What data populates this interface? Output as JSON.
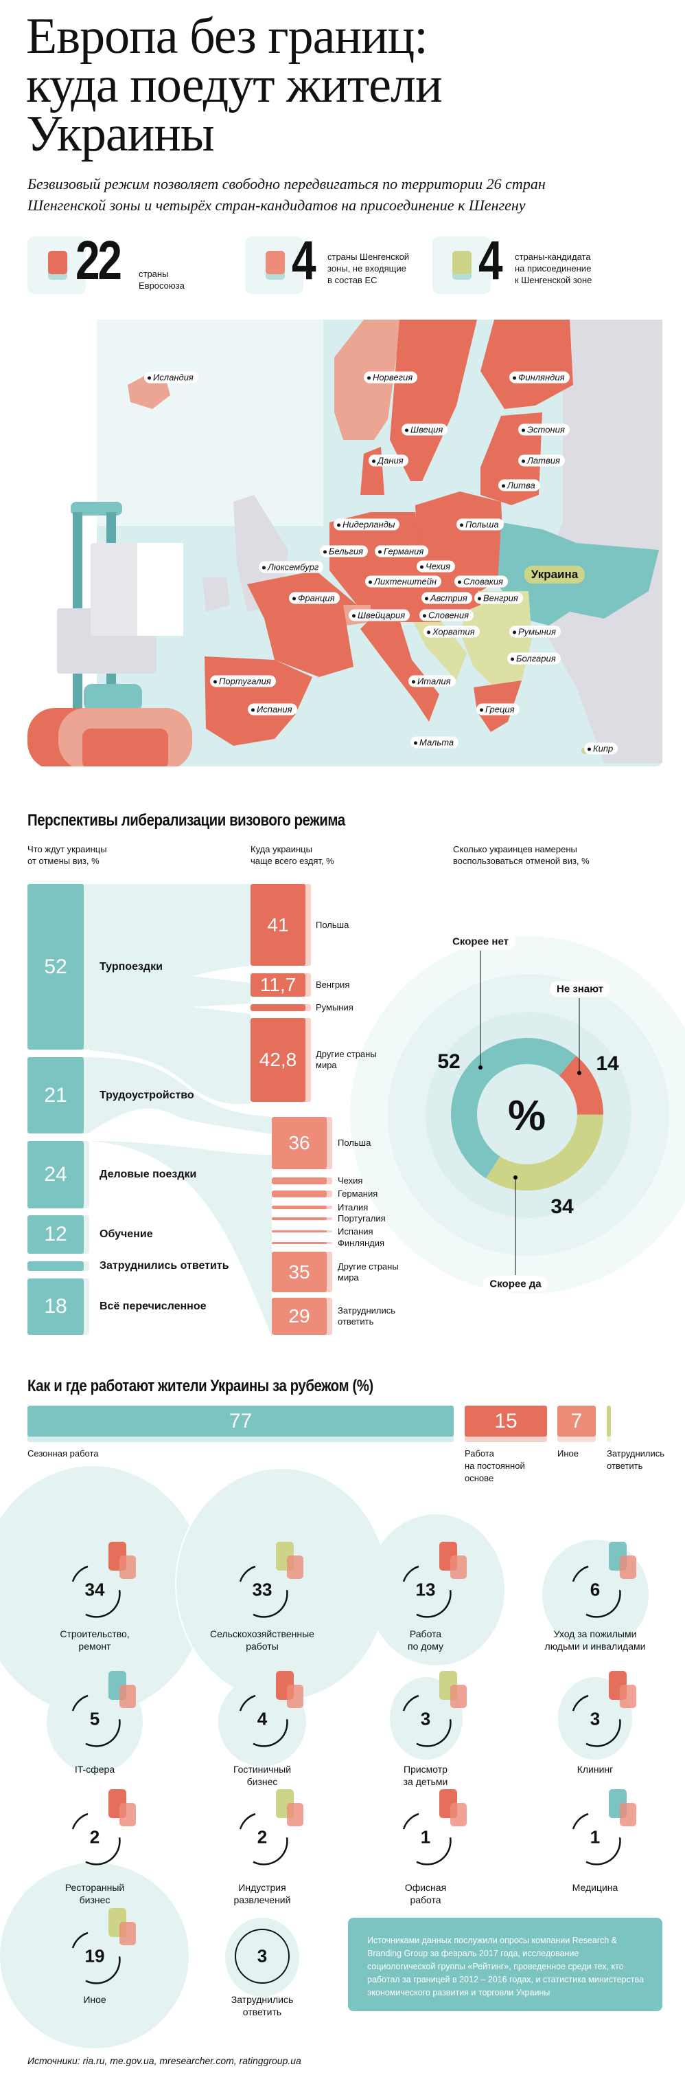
{
  "header": {
    "title": "Европа без границ:\nкуда поедут жители\nУкраины",
    "subtitle": "Безвизовый режим позволяет свободно передвигаться по территории 26 стран\nШенгенской зоны и четырёх стран-кандидатов на присоединение к Шенгену"
  },
  "stats": [
    {
      "value": "22",
      "label": "страны\nЕвросоюза",
      "color": "#e56f5a"
    },
    {
      "value": "4",
      "label": "страны Шенгенской\nзоны, не входящие\nв состав ЕС",
      "color": "#ec8c79"
    },
    {
      "value": "4",
      "label": "страны-кандидата\nна присоединение\nк Шенгенской зоне",
      "color": "#cdd488"
    }
  ],
  "map": {
    "countries": [
      "Исландия",
      "Норвегия",
      "Финляндия",
      "Швеция",
      "Эстония",
      "Дания",
      "Латвия",
      "Литва",
      "Нидерланды",
      "Польша",
      "Бельгия",
      "Германия",
      "Люксембург",
      "Чехия",
      "Лихтенштейн",
      "Словакия",
      "Франция",
      "Австрия",
      "Венгрия",
      "Швейцария",
      "Словения",
      "Хорватия",
      "Румыния",
      "Болгария",
      "Португалия",
      "Италия",
      "Испания",
      "Греция",
      "Мальта",
      "Кипр"
    ],
    "ukraine": "Украина"
  },
  "visa": {
    "heading": "Перспективы либерализации визового режима",
    "col_headers": [
      "Что ждут украинцы\nот отмены виз, %",
      "Куда украинцы\nчаще всего ездят, %",
      "Сколько украинцев намерены\nвоспользоваться отменой виз, %"
    ],
    "reasons": [
      {
        "value": "52",
        "label": "Турпоездки"
      },
      {
        "value": "21",
        "label": "Трудоустройство"
      },
      {
        "value": "24",
        "label": "Деловые поездки"
      },
      {
        "value": "12",
        "label": "Обучение"
      },
      {
        "value": "",
        "label": "Затруднились ответить"
      },
      {
        "value": "18",
        "label": "Всё перечисленное"
      }
    ],
    "tourism": [
      {
        "value": "41",
        "label": "Польша"
      },
      {
        "value": "11,7",
        "label": "Венгрия"
      },
      {
        "value": "",
        "label": "Румыния"
      },
      {
        "value": "42,8",
        "label": "Другие страны\nмира"
      }
    ],
    "work": [
      {
        "value": "36",
        "label": "Польша"
      },
      {
        "value": "",
        "label": "Чехия"
      },
      {
        "value": "",
        "label": "Германия"
      },
      {
        "value": "",
        "label": "Италия"
      },
      {
        "value": "",
        "label": "Португалия"
      },
      {
        "value": "",
        "label": "Испания"
      },
      {
        "value": "",
        "label": "Финляндия"
      },
      {
        "value": "35",
        "label": "Другие страны\nмира"
      },
      {
        "value": "29",
        "label": "Затруднились\nответить"
      }
    ],
    "donut": {
      "center": "%",
      "segments": [
        {
          "label": "Не знают",
          "value": 14,
          "color": "#e56f5a"
        },
        {
          "label": "Скорее да",
          "value": 34,
          "color": "#cdd488"
        },
        {
          "label": "Скорее нет",
          "value": 52,
          "color": "#7cc4c2"
        }
      ]
    }
  },
  "work": {
    "heading": "Как и где работают жители Украины за рубежом (%)",
    "bars": [
      {
        "value": "77",
        "label": "Сезонная работа"
      },
      {
        "value": "15",
        "label": "Работа\nна постоянной\nосновe"
      },
      {
        "value": "7",
        "label": "Иное"
      },
      {
        "value": "",
        "label": "Затруднились\nответить"
      }
    ],
    "categories": [
      {
        "value": "34",
        "label": "Строительство,\nремонт"
      },
      {
        "value": "33",
        "label": "Сельскохозяйственные\nработы"
      },
      {
        "value": "13",
        "label": "Работа\nпо дому"
      },
      {
        "value": "6",
        "label": "Уход за пожилыми\nлюдьми и инвалидами"
      },
      {
        "value": "5",
        "label": "IT-сфера"
      },
      {
        "value": "4",
        "label": "Гостиничный\nбизнес"
      },
      {
        "value": "3",
        "label": "Присмотр\nза детьми"
      },
      {
        "value": "3",
        "label": "Клининг"
      },
      {
        "value": "2",
        "label": "Ресторанный\nбизнес"
      },
      {
        "value": "2",
        "label": "Индустрия\nразвлечений"
      },
      {
        "value": "1",
        "label": "Офисная\nработа"
      },
      {
        "value": "1",
        "label": "Медицина"
      },
      {
        "value": "19",
        "label": "Иное"
      },
      {
        "value": "3",
        "label": "Затруднились\nответить"
      }
    ],
    "note": "Источниками данных послужили опросы компании Research & Branding Group за февраль 2017 года, исследование социологической группы «Рейтинг», проведенное среди тех, кто работал за границей в 2012 – 2016 годах, и статистика министерства экономического развития и торговли Украины",
    "sources": "Источники: ria.ru, me.gov.ua, mresearcher.com, ratinggroup.ua"
  }
}
